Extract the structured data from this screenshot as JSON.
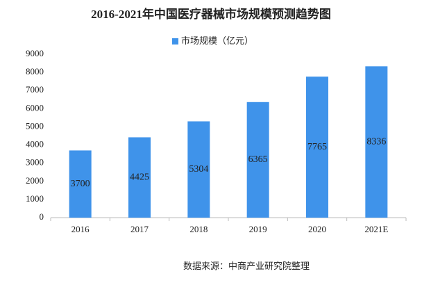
{
  "chart_data": {
    "type": "bar",
    "title": "2016-2021年中国医疗器械市场规模预测趋势图",
    "series": [
      {
        "name": "市场规模（亿元）",
        "color": "#3f93ea",
        "values": [
          3700,
          4425,
          5304,
          6365,
          7765,
          8336
        ]
      }
    ],
    "categories": [
      "2016",
      "2017",
      "2018",
      "2019",
      "2020",
      "2021E"
    ],
    "ylim": [
      0,
      9000
    ],
    "yticks": [
      0,
      1000,
      2000,
      3000,
      4000,
      5000,
      6000,
      7000,
      8000,
      9000
    ],
    "data_labels": true,
    "legend": "top",
    "source": "数据来源：中商产业研究院整理"
  }
}
